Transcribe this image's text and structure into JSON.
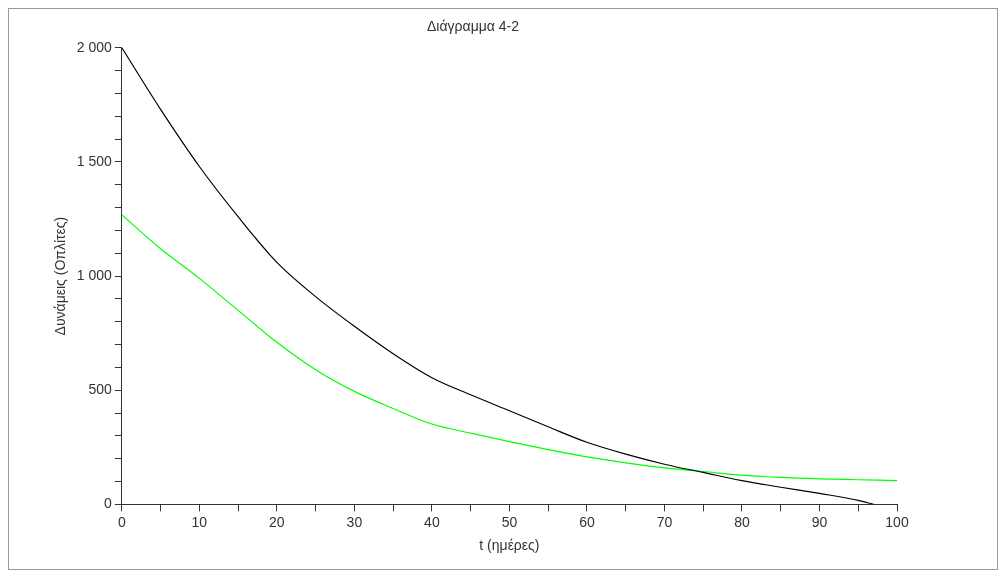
{
  "chart_data": {
    "type": "line",
    "title": "Διάγραμμα 4-2",
    "xlabel": "t (ημέρες)",
    "ylabel": "Δυνάμεις (Οπλίτες)",
    "xlim": [
      0,
      100
    ],
    "ylim": [
      0,
      2000
    ],
    "xticks": [
      0,
      {
        "value": 5,
        "label": null
      },
      10,
      {
        "value": 15,
        "label": null
      },
      20,
      {
        "value": 25,
        "label": null
      },
      30,
      {
        "value": 35,
        "label": null
      },
      40,
      {
        "value": 45,
        "label": null
      },
      50,
      {
        "value": 55,
        "label": null
      },
      60,
      {
        "value": 65,
        "label": null
      },
      70,
      {
        "value": 75,
        "label": null
      },
      80,
      {
        "value": 85,
        "label": null
      },
      90,
      {
        "value": 95,
        "label": null
      },
      100
    ],
    "yticks": [
      0,
      {
        "value": 100,
        "label": null
      },
      {
        "value": 200,
        "label": null
      },
      {
        "value": 300,
        "label": null
      },
      {
        "value": 400,
        "label": null
      },
      500,
      {
        "value": 600,
        "label": null
      },
      {
        "value": 700,
        "label": null
      },
      {
        "value": 800,
        "label": null
      },
      {
        "value": 900,
        "label": null
      },
      {
        "value": 1000,
        "label": "1 000"
      },
      {
        "value": 1100,
        "label": null
      },
      {
        "value": 1200,
        "label": null
      },
      {
        "value": 1300,
        "label": null
      },
      {
        "value": 1400,
        "label": null
      },
      {
        "value": 1500,
        "label": "1 500"
      },
      {
        "value": 1600,
        "label": null
      },
      {
        "value": 1700,
        "label": null
      },
      {
        "value": 1800,
        "label": null
      },
      {
        "value": 1900,
        "label": null
      },
      {
        "value": 2000,
        "label": "2 000"
      }
    ],
    "grid": false,
    "legend": false,
    "marker": "none",
    "line_style": "solid",
    "series": [
      {
        "color": "#000000",
        "x": [
          0,
          5,
          10,
          15,
          20,
          25,
          30,
          35,
          40,
          45,
          50,
          55,
          60,
          65,
          70,
          75,
          80,
          85,
          90,
          95,
          97
        ],
        "values": [
          2000,
          1730,
          1480,
          1260,
          1060,
          910,
          780,
          660,
          555,
          480,
          410,
          340,
          272,
          220,
          176,
          140,
          104,
          75,
          48,
          18,
          0
        ]
      },
      {
        "color": "#00ff00",
        "x": [
          0,
          5,
          10,
          15,
          20,
          25,
          30,
          35,
          40,
          45,
          50,
          55,
          60,
          65,
          70,
          75,
          80,
          85,
          90,
          95,
          100
        ],
        "values": [
          1268,
          1120,
          990,
          850,
          710,
          590,
          495,
          420,
          352,
          312,
          275,
          240,
          208,
          182,
          160,
          144,
          128,
          118,
          112,
          108,
          104
        ]
      }
    ]
  }
}
